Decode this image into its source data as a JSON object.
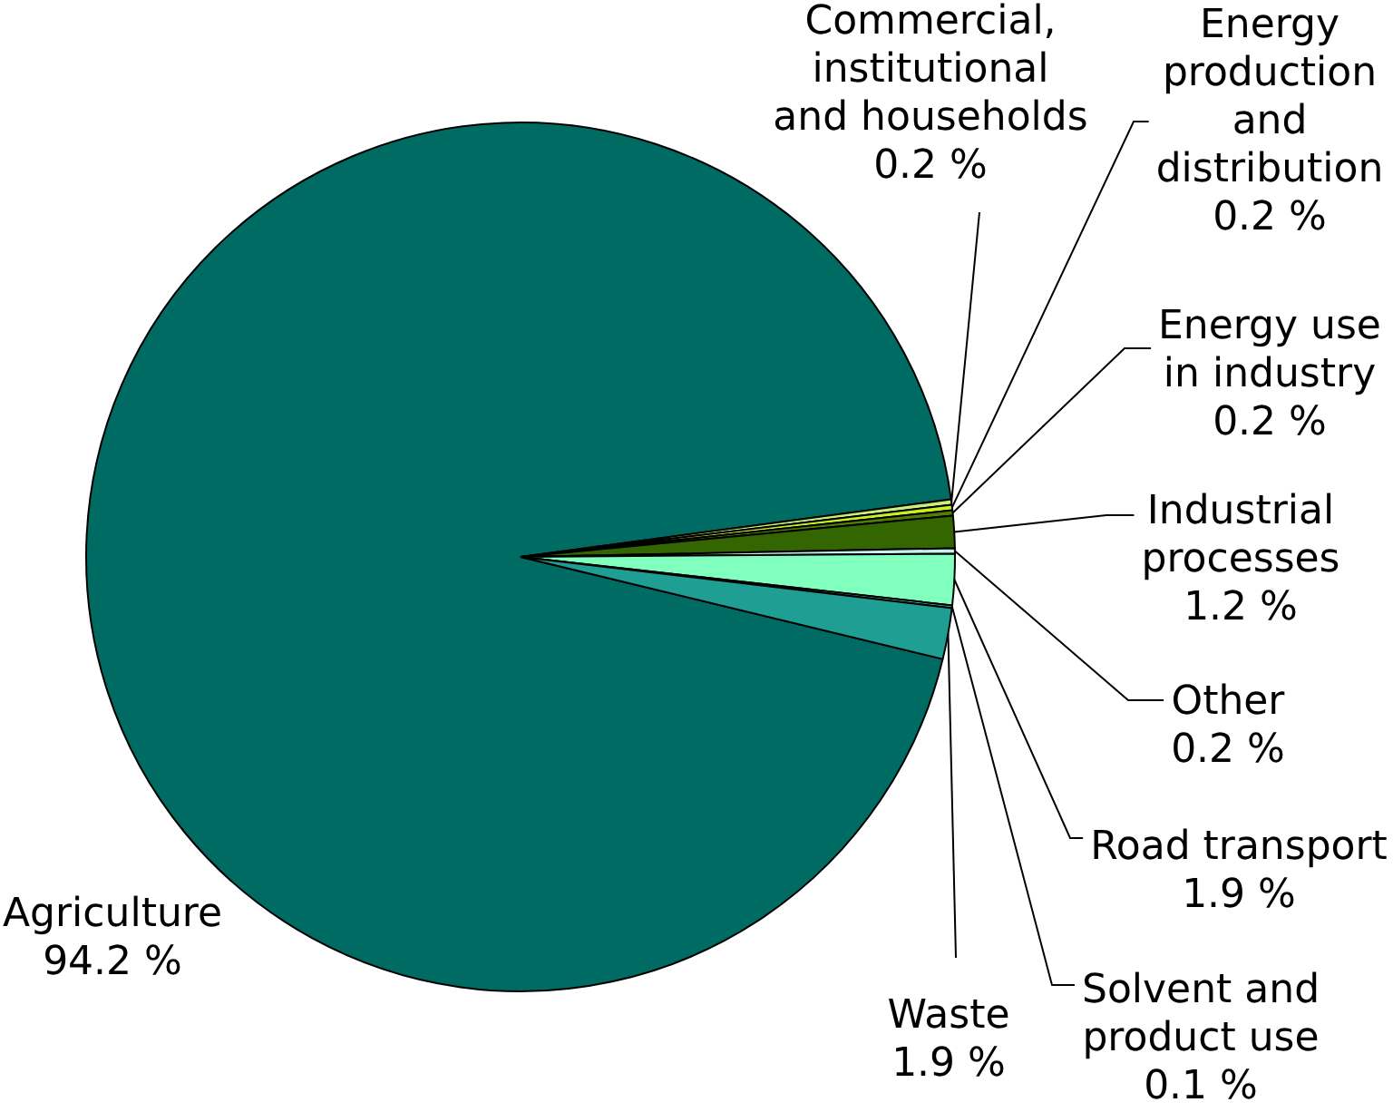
{
  "chart_data": {
    "type": "pie",
    "categories": [
      "Agriculture",
      "Commercial, institutional and households",
      "Energy production and distribution",
      "Energy use in industry",
      "Industrial processes",
      "Other",
      "Road transport",
      "Solvent and product use",
      "Waste"
    ],
    "values": [
      94.2,
      0.2,
      0.2,
      0.2,
      1.2,
      0.2,
      1.9,
      0.1,
      1.9
    ],
    "colors": [
      "#006b63",
      "#c6ef7b",
      "#c8f020",
      "#4f8000",
      "#336600",
      "#c4f0f0",
      "#80ffbf",
      "#40b0a8",
      "#1f9e94"
    ],
    "value_labels": [
      "94.2 %",
      "0.2 %",
      "0.2 %",
      "0.2 %",
      "1.2 %",
      "0.2 %",
      "1.9 %",
      "0.1 %",
      "1.9 %"
    ]
  }
}
